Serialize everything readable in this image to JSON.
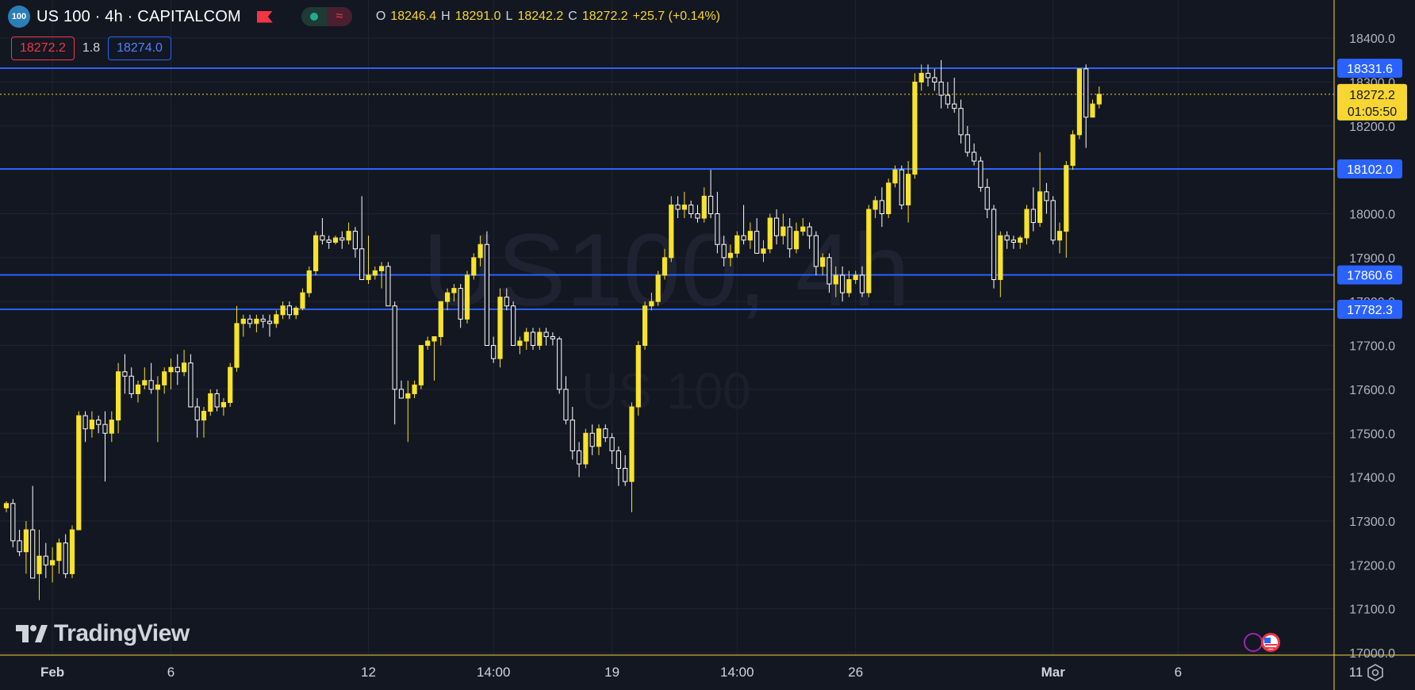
{
  "header": {
    "symbol_badge": "100",
    "title": "US 100 · 4h · CAPITALCOM",
    "open_key": "O",
    "open_val": "18246.4",
    "high_key": "H",
    "high_val": "18291.0",
    "low_key": "L",
    "low_val": "18242.2",
    "close_key": "C",
    "close_val": "18272.2",
    "change": "+25.7 (+0.14%)"
  },
  "prices": {
    "sell": "18272.2",
    "spread": "1.8",
    "buy": "18274.0"
  },
  "watermark": {
    "main": "US100, 4h",
    "sub": "US 100"
  },
  "logo": {
    "text": "TradingView"
  },
  "colors": {
    "background": "#131722",
    "up_candle": "#f7e32b",
    "down_candle": "#ffffff",
    "hline": "#2962ff",
    "last_price": "#f7d631",
    "grid": "#1f2433",
    "axis_text": "#b2b5be"
  },
  "icons": [
    "flag-icon",
    "settings-icon",
    "us-flag-icon",
    "tradingview-logo-icon"
  ],
  "chart_data": {
    "type": "candlestick",
    "title": "US 100 · 4h · CAPITALCOM",
    "ylim": [
      17000,
      18440
    ],
    "y_ticks": [
      "18400.0",
      "18300.0",
      "18200.0",
      "18100.0",
      "18000.0",
      "17900.0",
      "17800.0",
      "17700.0",
      "17600.0",
      "17500.0",
      "17400.0",
      "17300.0",
      "17200.0",
      "17100.0",
      "17000.0"
    ],
    "x_labels": [
      {
        "text": "Feb",
        "bar": 7,
        "bold": true
      },
      {
        "text": "6",
        "bar": 25,
        "bold": false
      },
      {
        "text": "12",
        "bar": 55,
        "bold": false
      },
      {
        "text": "14:00",
        "bar": 74,
        "bold": false
      },
      {
        "text": "19",
        "bar": 92,
        "bold": false
      },
      {
        "text": "14:00",
        "bar": 111,
        "bold": false
      },
      {
        "text": "26",
        "bar": 129,
        "bold": false
      },
      {
        "text": "Mar",
        "bar": 159,
        "bold": true
      },
      {
        "text": "6",
        "bar": 178,
        "bold": false
      },
      {
        "text": "11",
        "bar": 205,
        "bold": false
      }
    ],
    "horizontal_lines": [
      {
        "value": 18331.6,
        "label": "18331.6"
      },
      {
        "value": 18102.0,
        "label": "18102.0"
      },
      {
        "value": 17860.6,
        "label": "17860.6"
      },
      {
        "value": 17782.3,
        "label": "17782.3"
      }
    ],
    "last_price": {
      "value": 18272.2,
      "label": "18272.2",
      "countdown": "01:05:50"
    },
    "candles": [
      [
        17330,
        17345,
        17320,
        17340
      ],
      [
        17340,
        17350,
        17240,
        17255
      ],
      [
        17255,
        17280,
        17220,
        17230
      ],
      [
        17230,
        17300,
        17180,
        17280
      ],
      [
        17280,
        17380,
        17170,
        17170
      ],
      [
        17180,
        17280,
        17120,
        17220
      ],
      [
        17220,
        17250,
        17170,
        17200
      ],
      [
        17200,
        17240,
        17160,
        17210
      ],
      [
        17210,
        17260,
        17180,
        17250
      ],
      [
        17250,
        17270,
        17170,
        17180
      ],
      [
        17180,
        17290,
        17170,
        17280
      ],
      [
        17280,
        17550,
        17280,
        17540
      ],
      [
        17540,
        17550,
        17480,
        17510
      ],
      [
        17510,
        17550,
        17490,
        17530
      ],
      [
        17530,
        17540,
        17500,
        17520
      ],
      [
        17520,
        17550,
        17390,
        17500
      ],
      [
        17500,
        17550,
        17480,
        17530
      ],
      [
        17530,
        17660,
        17500,
        17640
      ],
      [
        17640,
        17680,
        17590,
        17630
      ],
      [
        17630,
        17650,
        17580,
        17590
      ],
      [
        17590,
        17620,
        17570,
        17610
      ],
      [
        17610,
        17650,
        17600,
        17620
      ],
      [
        17620,
        17660,
        17590,
        17600
      ],
      [
        17600,
        17630,
        17480,
        17610
      ],
      [
        17610,
        17650,
        17590,
        17640
      ],
      [
        17640,
        17670,
        17600,
        17650
      ],
      [
        17650,
        17680,
        17610,
        17640
      ],
      [
        17640,
        17690,
        17630,
        17660
      ],
      [
        17660,
        17680,
        17560,
        17560
      ],
      [
        17560,
        17580,
        17490,
        17530
      ],
      [
        17530,
        17560,
        17490,
        17550
      ],
      [
        17550,
        17600,
        17540,
        17590
      ],
      [
        17590,
        17600,
        17550,
        17560
      ],
      [
        17560,
        17580,
        17540,
        17570
      ],
      [
        17570,
        17660,
        17560,
        17650
      ],
      [
        17650,
        17790,
        17640,
        17750
      ],
      [
        17750,
        17770,
        17720,
        17760
      ],
      [
        17760,
        17770,
        17740,
        17750
      ],
      [
        17750,
        17770,
        17730,
        17760
      ],
      [
        17760,
        17770,
        17740,
        17755
      ],
      [
        17755,
        17770,
        17720,
        17750
      ],
      [
        17750,
        17780,
        17740,
        17770
      ],
      [
        17770,
        17800,
        17760,
        17790
      ],
      [
        17790,
        17800,
        17760,
        17770
      ],
      [
        17770,
        17790,
        17760,
        17785
      ],
      [
        17785,
        17830,
        17780,
        17820
      ],
      [
        17820,
        17880,
        17810,
        17870
      ],
      [
        17870,
        17960,
        17860,
        17950
      ],
      [
        17950,
        17990,
        17930,
        17940
      ],
      [
        17940,
        17950,
        17920,
        17935
      ],
      [
        17935,
        17950,
        17930,
        17945
      ],
      [
        17945,
        17960,
        17920,
        17940
      ],
      [
        17940,
        17980,
        17930,
        17960
      ],
      [
        17960,
        17970,
        17900,
        17920
      ],
      [
        17920,
        18040,
        17860,
        17850
      ],
      [
        17850,
        17950,
        17840,
        17860
      ],
      [
        17860,
        17880,
        17850,
        17870
      ],
      [
        17870,
        17890,
        17830,
        17880
      ],
      [
        17880,
        17890,
        17790,
        17790
      ],
      [
        17790,
        17800,
        17520,
        17600
      ],
      [
        17600,
        17620,
        17580,
        17580
      ],
      [
        17580,
        17620,
        17480,
        17590
      ],
      [
        17590,
        17620,
        17580,
        17610
      ],
      [
        17610,
        17700,
        17600,
        17700
      ],
      [
        17700,
        17720,
        17690,
        17710
      ],
      [
        17710,
        17720,
        17620,
        17720
      ],
      [
        17720,
        17800,
        17700,
        17800
      ],
      [
        17800,
        17830,
        17780,
        17820
      ],
      [
        17820,
        17840,
        17800,
        17830
      ],
      [
        17830,
        17840,
        17740,
        17760
      ],
      [
        17760,
        17870,
        17750,
        17860
      ],
      [
        17860,
        17910,
        17850,
        17900
      ],
      [
        17900,
        17950,
        17880,
        17930
      ],
      [
        17930,
        17960,
        17700,
        17700
      ],
      [
        17700,
        17720,
        17660,
        17670
      ],
      [
        17670,
        17830,
        17650,
        17810
      ],
      [
        17810,
        17830,
        17780,
        17790
      ],
      [
        17790,
        17800,
        17700,
        17700
      ],
      [
        17700,
        17720,
        17680,
        17710
      ],
      [
        17710,
        17740,
        17690,
        17730
      ],
      [
        17730,
        17740,
        17690,
        17700
      ],
      [
        17700,
        17740,
        17690,
        17730
      ],
      [
        17730,
        17740,
        17700,
        17720
      ],
      [
        17720,
        17730,
        17700,
        17715
      ],
      [
        17715,
        17720,
        17590,
        17600
      ],
      [
        17600,
        17630,
        17520,
        17530
      ],
      [
        17530,
        17560,
        17440,
        17460
      ],
      [
        17460,
        17480,
        17400,
        17430
      ],
      [
        17430,
        17510,
        17420,
        17500
      ],
      [
        17500,
        17520,
        17450,
        17470
      ],
      [
        17470,
        17520,
        17450,
        17510
      ],
      [
        17510,
        17520,
        17480,
        17490
      ],
      [
        17490,
        17500,
        17430,
        17460
      ],
      [
        17460,
        17470,
        17380,
        17420
      ],
      [
        17420,
        17450,
        17380,
        17390
      ],
      [
        17390,
        17570,
        17320,
        17560
      ],
      [
        17560,
        17710,
        17540,
        17700
      ],
      [
        17700,
        17800,
        17690,
        17790
      ],
      [
        17790,
        17820,
        17780,
        17800
      ],
      [
        17800,
        17870,
        17790,
        17860
      ],
      [
        17860,
        17920,
        17850,
        17900
      ],
      [
        17900,
        18040,
        17890,
        18020
      ],
      [
        18020,
        18040,
        17990,
        18010
      ],
      [
        18010,
        18050,
        17990,
        18020
      ],
      [
        18020,
        18030,
        17990,
        18000
      ],
      [
        18000,
        18020,
        17980,
        17990
      ],
      [
        17990,
        18060,
        17980,
        18040
      ],
      [
        18040,
        18100,
        17990,
        18000
      ],
      [
        18000,
        18050,
        17910,
        17930
      ],
      [
        17930,
        17950,
        17880,
        17900
      ],
      [
        17900,
        17930,
        17880,
        17910
      ],
      [
        17910,
        17960,
        17900,
        17950
      ],
      [
        17950,
        18020,
        17930,
        17940
      ],
      [
        17940,
        17980,
        17920,
        17960
      ],
      [
        17960,
        17990,
        17910,
        17910
      ],
      [
        17910,
        17940,
        17890,
        17920
      ],
      [
        17920,
        18000,
        17910,
        17990
      ],
      [
        17990,
        18010,
        17930,
        17950
      ],
      [
        17950,
        18000,
        17930,
        17970
      ],
      [
        17970,
        17990,
        17900,
        17920
      ],
      [
        17920,
        17980,
        17910,
        17960
      ],
      [
        17960,
        17990,
        17950,
        17970
      ],
      [
        17970,
        17980,
        17920,
        17950
      ],
      [
        17950,
        17960,
        17860,
        17880
      ],
      [
        17880,
        17910,
        17860,
        17900
      ],
      [
        17900,
        17910,
        17820,
        17840
      ],
      [
        17840,
        17880,
        17810,
        17860
      ],
      [
        17860,
        17880,
        17800,
        17820
      ],
      [
        17820,
        17870,
        17810,
        17850
      ],
      [
        17850,
        17870,
        17840,
        17860
      ],
      [
        17860,
        17880,
        17810,
        17820
      ],
      [
        17820,
        18020,
        17810,
        18010
      ],
      [
        18010,
        18040,
        17990,
        18030
      ],
      [
        18030,
        18060,
        17970,
        18000
      ],
      [
        18000,
        18080,
        17990,
        18070
      ],
      [
        18070,
        18110,
        18060,
        18100
      ],
      [
        18100,
        18110,
        18010,
        18020
      ],
      [
        18020,
        18120,
        17980,
        18090
      ],
      [
        18090,
        18320,
        18080,
        18300
      ],
      [
        18300,
        18340,
        18280,
        18320
      ],
      [
        18320,
        18340,
        18290,
        18310
      ],
      [
        18310,
        18330,
        18280,
        18300
      ],
      [
        18300,
        18350,
        18240,
        18270
      ],
      [
        18270,
        18300,
        18240,
        18250
      ],
      [
        18250,
        18310,
        18230,
        18240
      ],
      [
        18240,
        18260,
        18160,
        18180
      ],
      [
        18180,
        18200,
        18130,
        18140
      ],
      [
        18140,
        18160,
        18110,
        18120
      ],
      [
        18120,
        18130,
        18050,
        18060
      ],
      [
        18060,
        18080,
        17990,
        18010
      ],
      [
        18010,
        18020,
        17830,
        17850
      ],
      [
        17850,
        17960,
        17810,
        17950
      ],
      [
        17950,
        17960,
        17920,
        17940
      ],
      [
        17940,
        17950,
        17920,
        17935
      ],
      [
        17935,
        17950,
        17920,
        17945
      ],
      [
        17945,
        18020,
        17930,
        18010
      ],
      [
        18010,
        18060,
        17960,
        17980
      ],
      [
        17980,
        18140,
        17970,
        18050
      ],
      [
        18050,
        18070,
        18000,
        18030
      ],
      [
        18030,
        18040,
        17930,
        17940
      ],
      [
        17940,
        17980,
        17910,
        17960
      ],
      [
        17960,
        18120,
        17900,
        18110
      ],
      [
        18110,
        18190,
        18100,
        18180
      ],
      [
        18180,
        18330,
        18170,
        18330
      ],
      [
        18330,
        18340,
        18150,
        18220
      ],
      [
        18220,
        18260,
        18230,
        18250
      ],
      [
        18250,
        18290,
        18240,
        18272.2
      ]
    ]
  }
}
